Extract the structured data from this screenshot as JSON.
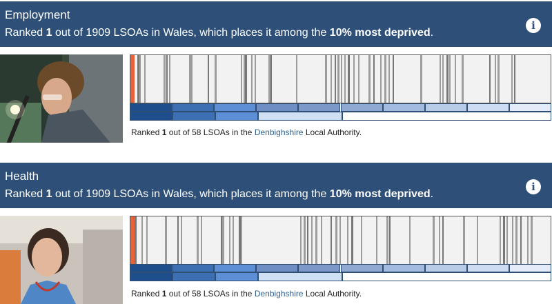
{
  "sections": [
    {
      "title": "Employment",
      "summary": {
        "pre": "Ranked ",
        "rank": "1",
        "mid": " out of 1909 LSOAs in Wales, which places it among the ",
        "band": "10% most deprived",
        "end": "."
      },
      "info_icon": "info-icon",
      "photo": "worker-at-machine-photo",
      "la_rank": {
        "pre": "Ranked ",
        "rank": "1",
        "mid": " out of 58 LSOAs in the ",
        "link": "Denbighshire",
        "end": " Local Authority."
      }
    },
    {
      "title": "Health",
      "summary": {
        "pre": "Ranked ",
        "rank": "1",
        "mid": " out of 1909 LSOAs in Wales, which places it among the ",
        "band": "10% most deprived",
        "end": "."
      },
      "info_icon": "info-icon",
      "photo": "nurse-portrait-photo",
      "la_rank": {
        "pre": "Ranked ",
        "rank": "1",
        "mid": " out of 58 LSOAs in the ",
        "link": "Denbighshire",
        "end": " Local Authority."
      }
    }
  ],
  "colors": {
    "header": "#2e5078",
    "selected_lsoa": "#e8633a",
    "decile_scale": [
      "#1f4e8c",
      "#3d6fb3",
      "#5c8fd6",
      "#6f8fc4",
      "#7b98c9",
      "#8fa9d3",
      "#a3bbdf",
      "#b8cce8",
      "#cddcf0",
      "#e3ecf8"
    ]
  }
}
